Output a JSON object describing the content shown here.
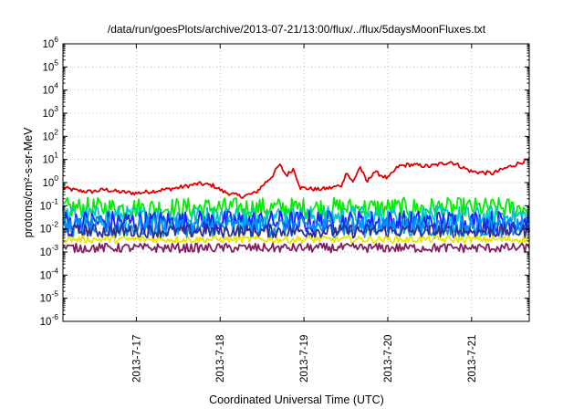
{
  "chart_data": {
    "type": "line",
    "title": "/data/run/goesPlots/archive/2013-07-21/13:00/flux/../flux/5daysMoonFluxes.txt",
    "xlabel": "Coordinated Universal Time (UTC)",
    "ylabel": "protons/cm²-s-sr-MeV",
    "yscale": "log",
    "ylim": [
      1e-06,
      1000000.0
    ],
    "xlim": [
      "2013-07-16T03:00",
      "2013-07-21T16:30"
    ],
    "grid": true,
    "x_ticks": [
      "2013-7-17",
      "2013-7-18",
      "2013-7-19",
      "2013-7-20",
      "2013-7-21"
    ],
    "y_ticks": [
      {
        "value": 1e-06,
        "base": "10",
        "exp": "-6"
      },
      {
        "value": 1e-05,
        "base": "10",
        "exp": "-5"
      },
      {
        "value": 0.0001,
        "base": "10",
        "exp": "-4"
      },
      {
        "value": 0.001,
        "base": "10",
        "exp": "-3"
      },
      {
        "value": 0.01,
        "base": "10",
        "exp": "-2"
      },
      {
        "value": 0.1,
        "base": "10",
        "exp": "-1"
      },
      {
        "value": 1.0,
        "base": "10",
        "exp": "0"
      },
      {
        "value": 10.0,
        "base": "10",
        "exp": "1"
      },
      {
        "value": 100.0,
        "base": "10",
        "exp": "2"
      },
      {
        "value": 1000.0,
        "base": "10",
        "exp": "3"
      },
      {
        "value": 10000.0,
        "base": "10",
        "exp": "4"
      },
      {
        "value": 100000.0,
        "base": "10",
        "exp": "5"
      },
      {
        "value": 1000000.0,
        "base": "10",
        "exp": "6"
      }
    ],
    "series": [
      {
        "color": "#e00000",
        "noise": 0.5,
        "points": [
          [
            "2013-07-16T03:00",
            0.6
          ],
          [
            "2013-07-16T07:00",
            0.45
          ],
          [
            "2013-07-16T11:00",
            0.4
          ],
          [
            "2013-07-16T15:00",
            0.5
          ],
          [
            "2013-07-16T19:00",
            0.4
          ],
          [
            "2013-07-17T00:00",
            0.35
          ],
          [
            "2013-07-17T06:00",
            0.45
          ],
          [
            "2013-07-17T12:00",
            0.6
          ],
          [
            "2013-07-17T18:00",
            0.9
          ],
          [
            "2013-07-17T22:00",
            0.75
          ],
          [
            "2013-07-18T01:00",
            0.4
          ],
          [
            "2013-07-18T06:00",
            0.25
          ],
          [
            "2013-07-18T10:00",
            0.35
          ],
          [
            "2013-07-18T13:00",
            1.0
          ],
          [
            "2013-07-18T15:00",
            2.0
          ],
          [
            "2013-07-18T17:00",
            6.0
          ],
          [
            "2013-07-18T19:00",
            2.0
          ],
          [
            "2013-07-18T21:00",
            4.0
          ],
          [
            "2013-07-18T23:00",
            0.6
          ],
          [
            "2013-07-19T04:00",
            0.5
          ],
          [
            "2013-07-19T08:00",
            0.6
          ],
          [
            "2013-07-19T11:00",
            0.8
          ],
          [
            "2013-07-19T12:00",
            3.0
          ],
          [
            "2013-07-19T14:00",
            1.0
          ],
          [
            "2013-07-19T16:00",
            5.0
          ],
          [
            "2013-07-19T18:00",
            1.0
          ],
          [
            "2013-07-19T20:00",
            3.0
          ],
          [
            "2013-07-20T00:00",
            1.5
          ],
          [
            "2013-07-20T03:00",
            5.0
          ],
          [
            "2013-07-20T06:00",
            6.0
          ],
          [
            "2013-07-20T12:00",
            5.0
          ],
          [
            "2013-07-20T18:00",
            8.0
          ],
          [
            "2013-07-21T00:00",
            3.0
          ],
          [
            "2013-07-21T06:00",
            2.5
          ],
          [
            "2013-07-21T11:00",
            5.0
          ],
          [
            "2013-07-21T16:30",
            10.0
          ]
        ]
      },
      {
        "color": "#00ee00",
        "noise": 0.9,
        "points": [
          [
            "2013-07-16T03:00",
            0.08
          ],
          [
            "2013-07-21T16:30",
            0.08
          ]
        ]
      },
      {
        "color": "#00c8c8",
        "noise": 0.9,
        "points": [
          [
            "2013-07-16T03:00",
            0.035
          ],
          [
            "2013-07-21T16:30",
            0.035
          ]
        ]
      },
      {
        "color": "#1a22ff",
        "noise": 1.0,
        "points": [
          [
            "2013-07-16T03:00",
            0.02
          ],
          [
            "2013-07-21T16:30",
            0.02
          ]
        ]
      },
      {
        "color": "#0090ff",
        "noise": 0.9,
        "points": [
          [
            "2013-07-16T03:00",
            0.012
          ],
          [
            "2013-07-21T16:30",
            0.012
          ]
        ]
      },
      {
        "color": "#303090",
        "noise": 0.6,
        "points": [
          [
            "2013-07-16T03:00",
            0.008
          ],
          [
            "2013-07-21T16:30",
            0.008
          ]
        ]
      },
      {
        "color": "#e8e800",
        "noise": 0.3,
        "points": [
          [
            "2013-07-16T03:00",
            0.0035
          ],
          [
            "2013-07-21T16:30",
            0.0035
          ]
        ]
      },
      {
        "color": "#802060",
        "noise": 0.4,
        "points": [
          [
            "2013-07-16T03:00",
            0.0015
          ],
          [
            "2013-07-21T16:30",
            0.0015
          ]
        ]
      }
    ]
  }
}
